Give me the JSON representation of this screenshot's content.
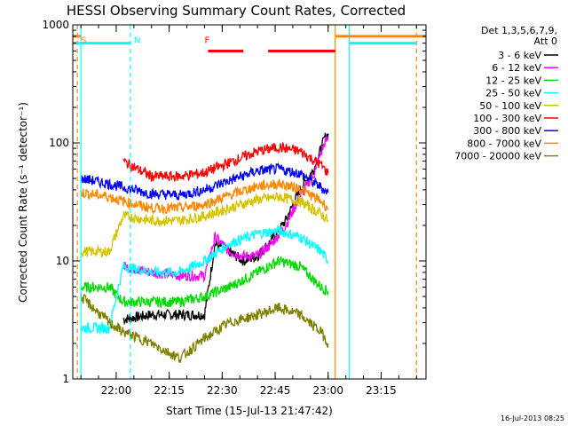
{
  "chart_data": {
    "type": "line",
    "title": "HESSI Observing Summary Count Rates, Corrected",
    "xlabel": "Start Time (15-Jul-13 21:47:42)",
    "ylabel": "Corrected Count Rate (s⁻¹ detector⁻¹)",
    "y_scale": "log",
    "ylim": [
      1,
      1000
    ],
    "xlim": [
      "21:47:42",
      "23:27:42"
    ],
    "x_ticks": [
      "22:00",
      "22:15",
      "22:30",
      "22:45",
      "23:00",
      "23:15"
    ],
    "y_ticks": [
      "1",
      "10",
      "100",
      "1000"
    ],
    "legend_title": [
      "Det 1,3,5,6,7,9,",
      "Att 0"
    ],
    "legend_position": "right",
    "timestamp": "16-Jul-2013 08:25",
    "series": [
      {
        "name": "3 - 6 keV",
        "color": "#000000",
        "x": [
          "22:02",
          "22:10",
          "22:18",
          "22:25",
          "22:28",
          "22:32",
          "22:36",
          "22:40",
          "22:44",
          "22:48",
          "22:52",
          "22:56",
          "22:59",
          "23:00"
        ],
        "y": [
          3.2,
          3.5,
          3.5,
          3.5,
          14,
          12,
          10,
          11,
          15,
          22,
          40,
          60,
          110,
          120
        ]
      },
      {
        "name": "6 - 12 keV",
        "color": "#ff00ff",
        "x": [
          "22:02",
          "22:10",
          "22:18",
          "22:25",
          "22:28",
          "22:32",
          "22:36",
          "22:40",
          "22:44",
          "22:48",
          "22:52",
          "22:56",
          "22:59",
          "23:00"
        ],
        "y": [
          9,
          8,
          7.5,
          7.5,
          16,
          12,
          11,
          11,
          14,
          20,
          35,
          55,
          100,
          110
        ]
      },
      {
        "name": "12 - 25 keV",
        "color": "#00dd00",
        "x": [
          "21:50",
          "21:58",
          "22:02",
          "22:10",
          "22:18",
          "22:25",
          "22:32",
          "22:40",
          "22:46",
          "22:52",
          "22:58",
          "23:00"
        ],
        "y": [
          6,
          6,
          4.5,
          4.5,
          4.5,
          5,
          6,
          8,
          10,
          9,
          6,
          5.5
        ]
      },
      {
        "name": "25 - 50 keV",
        "color": "#00ffff",
        "x": [
          "21:50",
          "21:58",
          "22:02",
          "22:10",
          "22:18",
          "22:25",
          "22:32",
          "22:40",
          "22:46",
          "22:52",
          "22:58",
          "23:00"
        ],
        "y": [
          2.7,
          2.7,
          9,
          8,
          8,
          10,
          14,
          17,
          18,
          16,
          12,
          10
        ]
      },
      {
        "name": "50 - 100 keV",
        "color": "#d4c400",
        "x": [
          "21:50",
          "21:58",
          "22:02",
          "22:10",
          "22:18",
          "22:25",
          "22:32",
          "22:40",
          "22:46",
          "22:52",
          "22:58",
          "23:00"
        ],
        "y": [
          12,
          12,
          24,
          22,
          22,
          24,
          28,
          33,
          35,
          32,
          25,
          22
        ]
      },
      {
        "name": "100 - 300 keV",
        "color": "#ff0000",
        "x": [
          "22:02",
          "22:06",
          "22:10",
          "22:18",
          "22:25",
          "22:32",
          "22:40",
          "22:46",
          "22:52",
          "22:58",
          "23:00"
        ],
        "y": [
          70,
          60,
          52,
          52,
          56,
          68,
          85,
          92,
          85,
          65,
          55
        ]
      },
      {
        "name": "300 - 800 keV",
        "color": "#0000ff",
        "x": [
          "21:50",
          "21:58",
          "22:02",
          "22:10",
          "22:18",
          "22:25",
          "22:32",
          "22:40",
          "22:46",
          "22:52",
          "22:58",
          "23:00"
        ],
        "y": [
          50,
          45,
          42,
          37,
          36,
          40,
          48,
          58,
          60,
          55,
          42,
          38
        ]
      },
      {
        "name": "800 - 7000 keV",
        "color": "#ff8800",
        "x": [
          "21:50",
          "21:58",
          "22:02",
          "22:10",
          "22:18",
          "22:25",
          "22:32",
          "22:40",
          "22:46",
          "22:52",
          "22:58",
          "23:00"
        ],
        "y": [
          38,
          35,
          32,
          28,
          28,
          30,
          36,
          43,
          45,
          41,
          32,
          28
        ]
      },
      {
        "name": "7000 - 20000 keV",
        "color": "#808000",
        "x": [
          "21:50",
          "21:58",
          "22:02",
          "22:10",
          "22:18",
          "22:25",
          "22:32",
          "22:40",
          "22:46",
          "22:52",
          "22:58",
          "23:00"
        ],
        "y": [
          5,
          3,
          2.5,
          2,
          1.5,
          2.2,
          3,
          3.5,
          4,
          3.5,
          2.5,
          2
        ]
      }
    ],
    "annotations": [
      {
        "label": "S",
        "color": "#ff8800",
        "x": "21:49"
      },
      {
        "label": "N",
        "color": "#00ffff",
        "x": "22:04"
      },
      {
        "label": "F",
        "color": "#ff0000",
        "x": "22:24"
      }
    ],
    "spans": [
      {
        "color": "#00ffff",
        "y": 700,
        "from": "21:47:42",
        "to": "22:04"
      },
      {
        "color": "#ff8800",
        "y": 800,
        "from": "21:47:42",
        "to": "21:50"
      },
      {
        "color": "#ff0000",
        "y": 600,
        "from": "22:26",
        "to": "22:36"
      },
      {
        "color": "#ff0000",
        "y": 600,
        "from": "22:43",
        "to": "23:02"
      },
      {
        "color": "#ff8800",
        "y": 800,
        "from": "23:02",
        "to": "23:27:42"
      },
      {
        "color": "#00ffff",
        "y": 700,
        "from": "23:06",
        "to": "23:25"
      }
    ],
    "vlines": [
      {
        "x": "21:49",
        "color": "#ff8800",
        "style": "dashed"
      },
      {
        "x": "21:50",
        "color": "#00ffff",
        "style": "solid"
      },
      {
        "x": "22:04",
        "color": "#00ffff",
        "style": "dashed"
      },
      {
        "x": "23:02",
        "color": "#ff8800",
        "style": "solid"
      },
      {
        "x": "23:06",
        "color": "#00ffff",
        "style": "solid"
      },
      {
        "x": "23:25",
        "color": "#ff8800",
        "style": "dashed"
      }
    ],
    "grid": false
  }
}
